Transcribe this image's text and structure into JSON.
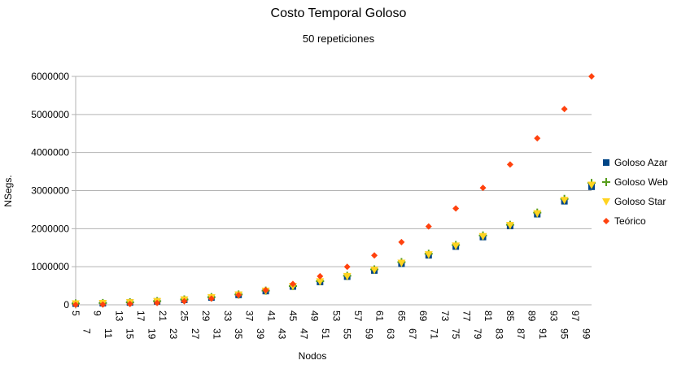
{
  "chart_data": {
    "type": "scatter",
    "title": "Costo Temporal Goloso",
    "subtitle": "50 repeticiones",
    "xlabel": "Nodos",
    "ylabel": "NSegs.",
    "ylim": [
      0,
      6000000
    ],
    "yticks": [
      0,
      1000000,
      2000000,
      3000000,
      4000000,
      5000000,
      6000000
    ],
    "ytick_labels": [
      "0",
      "1000000",
      "2000000",
      "3000000",
      "4000000",
      "5000000",
      "6000000"
    ],
    "xrange": [
      5,
      100
    ],
    "xtick_labels": [
      "5",
      "7",
      "9",
      "11",
      "13",
      "15",
      "17",
      "19",
      "21",
      "23",
      "25",
      "27",
      "29",
      "31",
      "33",
      "35",
      "37",
      "39",
      "41",
      "43",
      "45",
      "47",
      "49",
      "51",
      "53",
      "55",
      "57",
      "59",
      "61",
      "63",
      "65",
      "67",
      "69",
      "71",
      "73",
      "75",
      "77",
      "79",
      "81",
      "83",
      "85",
      "87",
      "89",
      "91",
      "93",
      "95",
      "97",
      "99"
    ],
    "grid": "horizontal",
    "legend_position": "right",
    "series": [
      {
        "name": "Goloso Azar",
        "color": "#004586",
        "marker": "square",
        "x": [
          5,
          10,
          15,
          20,
          25,
          30,
          35,
          40,
          45,
          50,
          55,
          60,
          65,
          70,
          75,
          80,
          85,
          90,
          95,
          100
        ],
        "y": [
          30000,
          40000,
          60000,
          90000,
          130000,
          190000,
          260000,
          360000,
          480000,
          600000,
          740000,
          900000,
          1080000,
          1300000,
          1530000,
          1780000,
          2070000,
          2380000,
          2720000,
          3100000
        ]
      },
      {
        "name": "Goloso Web",
        "color": "#579d1c",
        "marker": "plus",
        "x": [
          5,
          10,
          15,
          20,
          25,
          30,
          35,
          40,
          45,
          50,
          55,
          60,
          65,
          70,
          75,
          80,
          85,
          90,
          95,
          100
        ],
        "y": [
          35000,
          45000,
          65000,
          95000,
          140000,
          200000,
          270000,
          370000,
          490000,
          620000,
          760000,
          930000,
          1120000,
          1340000,
          1570000,
          1820000,
          2100000,
          2420000,
          2780000,
          3200000
        ]
      },
      {
        "name": "Goloso Star",
        "color": "#ffd320",
        "marker": "triangle-down",
        "x": [
          5,
          10,
          15,
          20,
          25,
          30,
          35,
          40,
          45,
          50,
          55,
          60,
          65,
          70,
          75,
          80,
          85,
          90,
          95,
          100
        ],
        "y": [
          32000,
          42000,
          62000,
          92000,
          135000,
          195000,
          265000,
          365000,
          485000,
          610000,
          750000,
          915000,
          1100000,
          1320000,
          1550000,
          1800000,
          2090000,
          2400000,
          2750000,
          3150000
        ]
      },
      {
        "name": "Teórico",
        "color": "#ff420e",
        "marker": "diamond",
        "x": [
          5,
          10,
          15,
          20,
          25,
          30,
          35,
          40,
          45,
          50,
          55,
          60,
          65,
          70,
          75,
          80,
          85,
          90,
          95,
          100
        ],
        "y": [
          750,
          6000,
          20250,
          48000,
          93750,
          162000,
          257250,
          384000,
          546750,
          750000,
          998250,
          1296000,
          1647750,
          2058000,
          2531250,
          3072000,
          3684750,
          4374000,
          5144250,
          6000000
        ]
      }
    ]
  }
}
